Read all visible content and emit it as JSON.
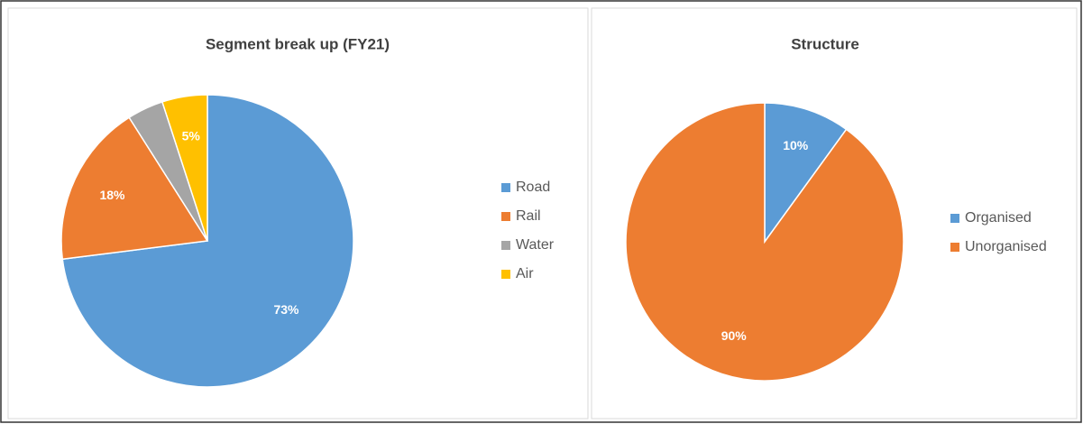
{
  "chart_data": [
    {
      "type": "pie",
      "title": "Segment break up (FY21)",
      "categories": [
        "Road",
        "Rail",
        "Water",
        "Air"
      ],
      "values": [
        73,
        18,
        4,
        5
      ],
      "value_labels": [
        "73%",
        "18%",
        null,
        "5%"
      ],
      "colors": [
        "#5b9bd5",
        "#ed7d31",
        "#a5a5a5",
        "#ffc000"
      ],
      "legend": "right"
    },
    {
      "type": "pie",
      "title": "Structure",
      "categories": [
        "Organised",
        "Unorganised"
      ],
      "values": [
        10,
        90
      ],
      "value_labels": [
        "10%",
        "90%"
      ],
      "colors": [
        "#5b9bd5",
        "#ed7d31"
      ],
      "legend": "right"
    }
  ]
}
